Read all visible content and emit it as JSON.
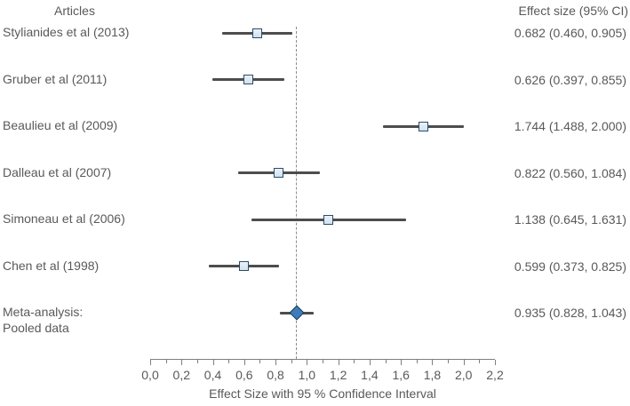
{
  "figure": {
    "headers": {
      "articles": "Articles",
      "effect_size": "Effect size (95% CI)"
    }
  },
  "chart_data": {
    "type": "scatter",
    "subtype": "forest-plot",
    "title": "",
    "xlabel": "Effect Size with 95 % Confidence Interval",
    "ylabel": "",
    "xlim": [
      0.0,
      2.2
    ],
    "x_major_step": 0.2,
    "x_minor_step": 0.1,
    "x_tick_labels": [
      "0,0",
      "0,2",
      "0,4",
      "0,6",
      "0,8",
      "1,0",
      "1,2",
      "1,4",
      "1,6",
      "1,8",
      "2,0",
      "2,2"
    ],
    "reference_line_x": 0.935,
    "grid": false,
    "legend": "none",
    "studies": [
      {
        "label_lines": [
          "Stylianides et al (2013)"
        ],
        "effect": 0.682,
        "ci_low": 0.46,
        "ci_high": 0.905,
        "value_text": "0.682 (0.460, 0.905)",
        "marker": "square"
      },
      {
        "label_lines": [
          "Gruber et al (2011)"
        ],
        "effect": 0.626,
        "ci_low": 0.397,
        "ci_high": 0.855,
        "value_text": "0.626 (0.397, 0.855)",
        "marker": "square"
      },
      {
        "label_lines": [
          "Beaulieu et al (2009)"
        ],
        "effect": 1.744,
        "ci_low": 1.488,
        "ci_high": 2.0,
        "value_text": "1.744 (1.488, 2.000)",
        "marker": "square"
      },
      {
        "label_lines": [
          "Dalleau et al (2007)"
        ],
        "effect": 0.822,
        "ci_low": 0.56,
        "ci_high": 1.084,
        "value_text": "0.822 (0.560, 1.084)",
        "marker": "square"
      },
      {
        "label_lines": [
          "Simoneau et al (2006)"
        ],
        "effect": 1.138,
        "ci_low": 0.645,
        "ci_high": 1.631,
        "value_text": "1.138 (0.645, 1.631)",
        "marker": "square"
      },
      {
        "label_lines": [
          "Chen et al (1998)"
        ],
        "effect": 0.599,
        "ci_low": 0.373,
        "ci_high": 0.825,
        "value_text": "0.599 (0.373, 0.825)",
        "marker": "square"
      },
      {
        "label_lines": [
          "Meta-analysis:",
          "Pooled data"
        ],
        "effect": 0.935,
        "ci_low": 0.828,
        "ci_high": 1.043,
        "value_text": "0.935 (0.828, 1.043)",
        "marker": "diamond"
      }
    ],
    "colors": {
      "text": "#595959",
      "ci_line": "#4d4d4d",
      "square_fill": "#d9e8f5",
      "square_border": "#2d4d66",
      "diamond_fill": "#3f7dba",
      "diamond_border": "#1b3a57",
      "axis": "#7f7f7f",
      "reference_line": "#8c8c8c"
    }
  }
}
